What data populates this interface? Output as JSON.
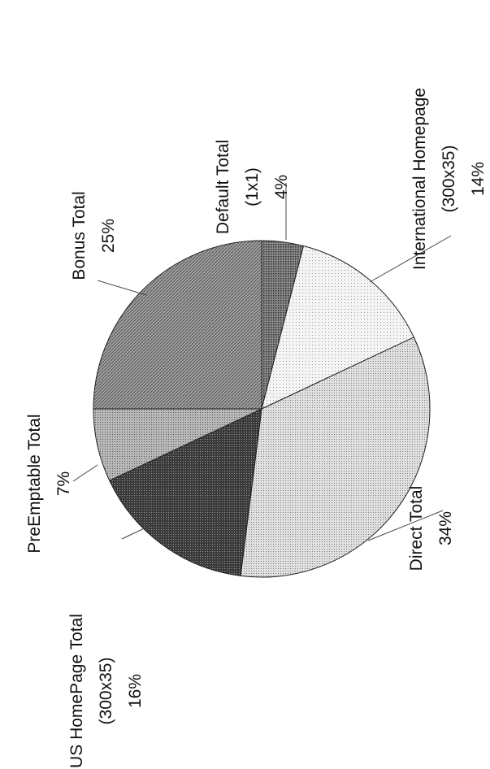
{
  "chart_data": {
    "type": "pie",
    "title": "",
    "slices": [
      {
        "label_lines": [
          "Default Total",
          "(1x1)"
        ],
        "value_label": "4%",
        "value": 4,
        "pattern": "p-darkdot"
      },
      {
        "label_lines": [
          "International Homepage",
          "(300x35)"
        ],
        "value_label": "14%",
        "value": 14,
        "pattern": "p-lightdot"
      },
      {
        "label_lines": [
          "Direct Total"
        ],
        "value_label": "34%",
        "value": 34,
        "pattern": "p-dot"
      },
      {
        "label_lines": [
          "US HomePage Total",
          "(300x35)"
        ],
        "value_label": "16%",
        "value": 16,
        "pattern": "p-dark"
      },
      {
        "label_lines": [
          "PreEmptable Total"
        ],
        "value_label": "7%",
        "value": 7,
        "pattern": "p-medium"
      },
      {
        "label_lines": [
          "Bonus Total"
        ],
        "value_label": "25%",
        "value": 25,
        "pattern": "p-hatch"
      }
    ],
    "legend": "none",
    "orientation": "rotated-90-ccw"
  }
}
